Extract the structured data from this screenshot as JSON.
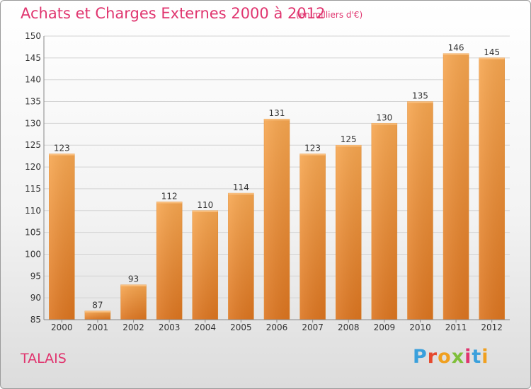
{
  "chart_data": {
    "type": "bar",
    "title": "Achats et Charges Externes 2000 à 2012",
    "subtitle": "(en milliers d'€)",
    "categories": [
      "2000",
      "2001",
      "2002",
      "2003",
      "2004",
      "2005",
      "2006",
      "2007",
      "2008",
      "2009",
      "2010",
      "2011",
      "2012"
    ],
    "values": [
      123,
      87,
      93,
      112,
      110,
      114,
      131,
      123,
      125,
      130,
      135,
      146,
      145
    ],
    "value_labels": [
      "123",
      "87",
      "93",
      "112",
      "110",
      "114",
      "131",
      "123",
      "125",
      "130",
      "135",
      "146",
      "145"
    ],
    "ylim": [
      85,
      150
    ],
    "yticks": [
      "85",
      "90",
      "95",
      "100",
      "105",
      "110",
      "115",
      "120",
      "125",
      "130",
      "135",
      "140",
      "145",
      "150"
    ],
    "grid": true,
    "bar_color": "#f09a3c"
  },
  "footer": {
    "place": "TALAIS",
    "brand_letters": [
      {
        "char": "P",
        "color": "#3aa0dc"
      },
      {
        "char": "r",
        "color": "#e6492d"
      },
      {
        "char": "o",
        "color": "#f0a020"
      },
      {
        "char": "x",
        "color": "#7fbf3a"
      },
      {
        "char": "i",
        "color": "#e0356f"
      },
      {
        "char": "t",
        "color": "#3aa0dc"
      },
      {
        "char": "i",
        "color": "#f0a020"
      }
    ]
  }
}
